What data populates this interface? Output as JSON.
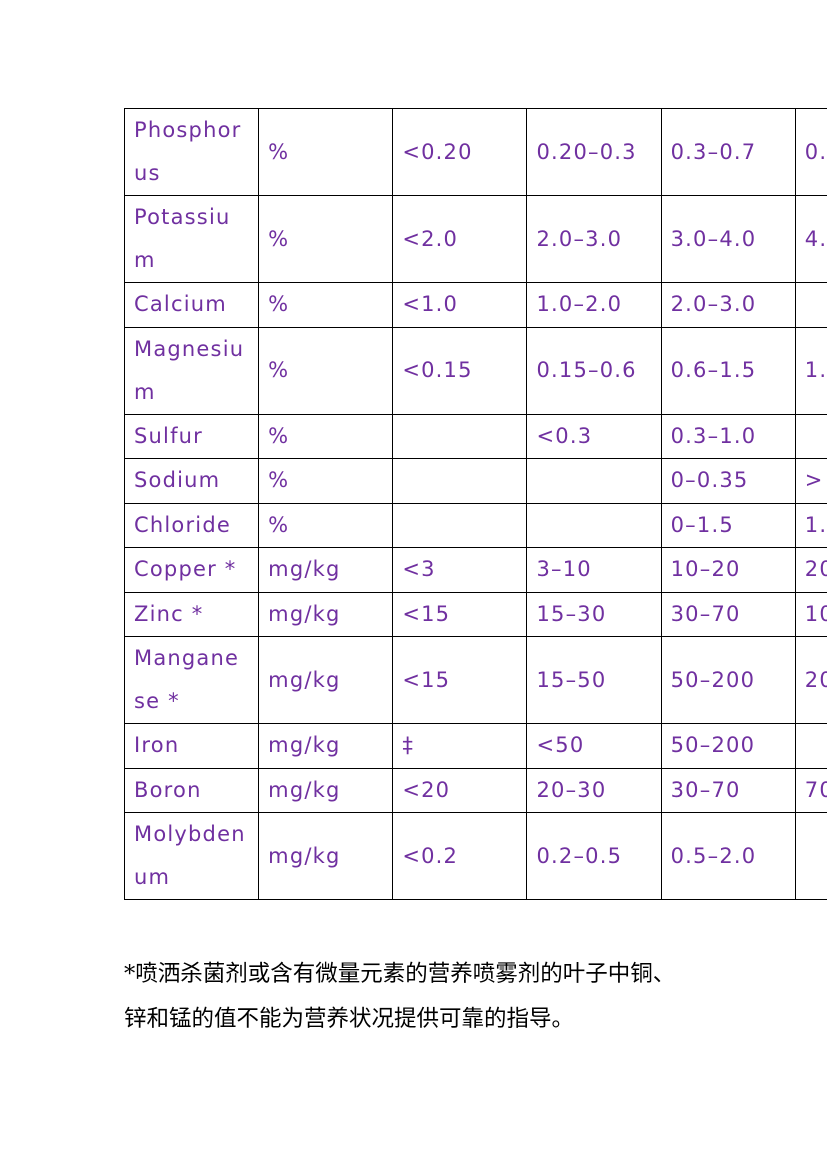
{
  "table": {
    "rows": [
      [
        "Phosphorus",
        "%",
        "<0.20",
        "0.20–0.3",
        "0.3–0.7",
        "0."
      ],
      [
        "Potassium",
        "%",
        "<2.0",
        "2.0–3.0",
        "3.0–4.0",
        "4."
      ],
      [
        "Calcium",
        "%",
        "<1.0",
        "1.0–2.0",
        "2.0–3.0",
        ""
      ],
      [
        "Magnesium",
        "%",
        "<0.15",
        "0.15–0.6",
        "0.6–1.5",
        "1."
      ],
      [
        "Sulfur",
        "%",
        "",
        "<0.3",
        "0.3–1.0",
        ""
      ],
      [
        "Sodium",
        "%",
        "",
        "",
        "0–0.35",
        ">"
      ],
      [
        "Chloride",
        "%",
        "",
        "",
        "0–1.5",
        "1."
      ],
      [
        "Copper *",
        "mg/kg",
        "<3",
        "3–10",
        "10–20",
        "20"
      ],
      [
        "Zinc *",
        "mg/kg",
        "<15",
        "15–30",
        "30–70",
        "10"
      ],
      [
        "Manganese *",
        "mg/kg",
        "<15",
        "15–50",
        "50–200",
        "20"
      ],
      [
        "Iron",
        "mg/kg",
        "‡",
        "<50",
        "50–200",
        ""
      ],
      [
        "Boron",
        "mg/kg",
        "<20",
        "20–30",
        "30–70",
        "70"
      ],
      [
        "Molybdenum",
        "mg/kg",
        "<0.2",
        "0.2–0.5",
        "0.5–2.0",
        ""
      ]
    ]
  },
  "footnote": {
    "lines": [
      "*喷洒杀菌剂或含有微量元素的营养喷雾剂的叶子中铜、",
      "锌和锰的值不能为营养状况提供可靠的指导。"
    ]
  }
}
